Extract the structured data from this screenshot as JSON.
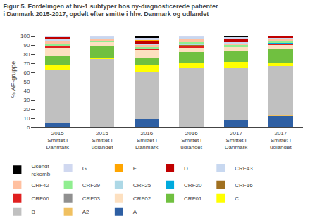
{
  "chart_data": {
    "type": "bar",
    "stacked": true,
    "title": "Figur 5. Fordelingen af hiv-1 subtyper hos ny-diagnosticerede patienter\ni Danmark 2015-2017, opdelt efter smitte i hhv. Danmark og udlandet",
    "ylabel": "% AF-gruppe",
    "categories": [
      "2015\nSmittet i\nDanmark",
      "2015\nSmittet i\nudlandet",
      "2016\nSmittet i\nDanmark",
      "2016\nSmittet i\nudlandet",
      "2017\nSmittet i\nDanmark",
      "2017\nSmittet i\nudlandet"
    ],
    "series": [
      {
        "name": "A",
        "color": "#2e5fa3",
        "values": [
          5,
          0,
          9,
          0,
          8,
          13
        ]
      },
      {
        "name": "A2",
        "color": "#f0c060",
        "values": [
          0,
          0,
          0,
          1,
          0,
          1
        ]
      },
      {
        "name": "B",
        "color": "#c0c0c0",
        "values": [
          58,
          75,
          52,
          64,
          57,
          53
        ]
      },
      {
        "name": "C",
        "color": "#ffff00",
        "values": [
          5,
          1,
          8,
          5,
          7,
          4
        ]
      },
      {
        "name": "CRF01",
        "color": "#70c040",
        "values": [
          11,
          13,
          7,
          13,
          12,
          15
        ]
      },
      {
        "name": "CRF02",
        "color": "#fde0c0",
        "values": [
          9,
          5,
          9,
          5,
          4,
          5
        ]
      },
      {
        "name": "CRF03",
        "color": "#909090",
        "values": [
          0,
          0,
          0,
          0,
          0,
          0
        ]
      },
      {
        "name": "CRF06",
        "color": "#e02020",
        "values": [
          1,
          0,
          1,
          1,
          0,
          1
        ]
      },
      {
        "name": "CRF16",
        "color": "#a07020",
        "values": [
          0,
          0,
          0,
          2,
          0,
          0
        ]
      },
      {
        "name": "CRF20",
        "color": "#00aadd",
        "values": [
          0,
          0,
          0,
          0,
          0,
          1
        ]
      },
      {
        "name": "CRF25",
        "color": "#add8e6",
        "values": [
          0,
          0,
          0,
          1,
          0,
          0
        ]
      },
      {
        "name": "CRF29",
        "color": "#90ee90",
        "values": [
          2,
          1,
          2,
          2,
          2,
          2
        ]
      },
      {
        "name": "CRF42",
        "color": "#ffc0a0",
        "values": [
          4,
          3,
          3,
          3,
          2,
          2
        ]
      },
      {
        "name": "CRF43",
        "color": "#c8d8f0",
        "values": [
          2,
          1,
          1,
          2,
          2,
          1
        ]
      },
      {
        "name": "D",
        "color": "#c00000",
        "values": [
          2,
          0,
          3,
          0,
          3,
          2
        ]
      },
      {
        "name": "F",
        "color": "#ffa500",
        "values": [
          0,
          0,
          1,
          0,
          0,
          0
        ]
      },
      {
        "name": "G",
        "color": "#d0d8f0",
        "values": [
          1,
          1,
          2,
          1,
          2,
          0
        ]
      },
      {
        "name": "Ukendt\nrekomb",
        "color": "#000000",
        "values": [
          0,
          0,
          2,
          0,
          1,
          0
        ]
      }
    ],
    "ylim": [
      0,
      105
    ],
    "yticks": [
      0,
      10,
      20,
      30,
      40,
      50,
      60,
      70,
      80,
      90,
      100
    ],
    "grid": false,
    "legend": "bottom"
  }
}
